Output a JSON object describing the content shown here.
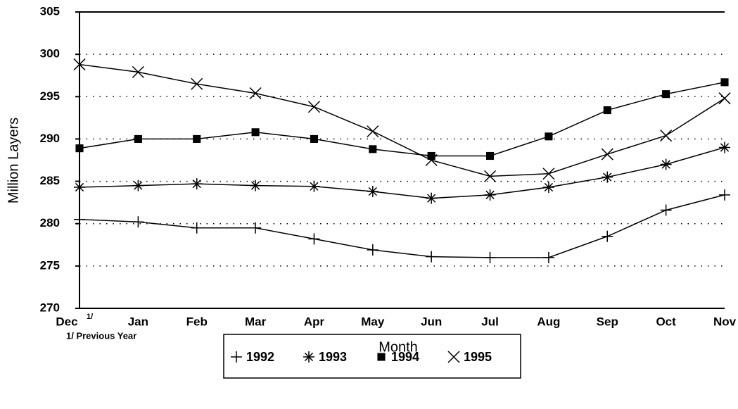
{
  "chart_data": {
    "type": "line",
    "y_label": "Million Layers",
    "x_label": "Month",
    "categories": [
      "Dec",
      "Jan",
      "Feb",
      "Mar",
      "Apr",
      "May",
      "Jun",
      "Jul",
      "Aug",
      "Sep",
      "Oct",
      "Nov"
    ],
    "category_note": "1/",
    "footnote": "1/ Previous Year",
    "ylim": [
      270,
      305
    ],
    "yticks": [
      270,
      275,
      280,
      285,
      290,
      295,
      300,
      305
    ],
    "grid": true,
    "series": [
      {
        "name": "1992",
        "color": "#000000",
        "marker": "plus",
        "values": [
          280.5,
          280.2,
          279.5,
          279.5,
          278.2,
          276.9,
          276.1,
          276.0,
          276.0,
          278.5,
          281.6,
          283.4
        ]
      },
      {
        "name": "1993",
        "color": "#000000",
        "marker": "asterisk",
        "values": [
          284.3,
          284.5,
          284.7,
          284.5,
          284.4,
          283.8,
          283.0,
          283.4,
          284.3,
          285.5,
          287.0,
          289.0
        ]
      },
      {
        "name": "1994",
        "color": "#000000",
        "marker": "square",
        "values": [
          288.9,
          290.0,
          290.0,
          290.8,
          290.0,
          288.8,
          288.0,
          288.0,
          290.3,
          293.4,
          295.3,
          296.7
        ]
      },
      {
        "name": "1995",
        "color": "#000000",
        "marker": "cross",
        "values": [
          298.8,
          297.9,
          296.5,
          295.4,
          293.8,
          290.9,
          287.5,
          285.6,
          285.9,
          288.2,
          290.4,
          294.8
        ]
      }
    ]
  }
}
